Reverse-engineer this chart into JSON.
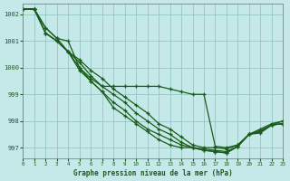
{
  "title": "Graphe pression niveau de la mer (hPa)",
  "background_color": "#c5e8e8",
  "line_color": "#1a5c1a",
  "grid_color": "#8bbfbf",
  "xlim": [
    0,
    23
  ],
  "ylim": [
    996.6,
    1002.4
  ],
  "yticks": [
    997,
    998,
    999,
    1000,
    1001,
    1002
  ],
  "xticks": [
    0,
    1,
    2,
    3,
    4,
    5,
    6,
    7,
    8,
    9,
    10,
    11,
    12,
    13,
    14,
    15,
    16,
    17,
    18,
    19,
    20,
    21,
    22,
    23
  ],
  "series": [
    [
      1002.2,
      1002.2,
      1001.5,
      1001.1,
      1000.6,
      1000.3,
      999.9,
      999.6,
      999.2,
      998.9,
      998.6,
      998.3,
      997.9,
      997.7,
      997.4,
      997.1,
      997.0,
      997.0,
      996.95,
      997.1,
      997.5,
      997.65,
      997.85,
      997.9
    ],
    [
      1002.2,
      1002.2,
      1001.3,
      1001.0,
      1000.6,
      1000.2,
      999.7,
      999.3,
      999.0,
      998.7,
      998.3,
      998.0,
      997.7,
      997.5,
      997.2,
      997.0,
      996.95,
      996.9,
      996.85,
      997.05,
      997.5,
      997.6,
      997.85,
      997.9
    ],
    [
      1002.2,
      1002.2,
      1001.3,
      1001.0,
      1000.6,
      1000.0,
      999.5,
      999.1,
      998.7,
      998.4,
      998.0,
      997.7,
      997.5,
      997.3,
      997.1,
      997.0,
      996.9,
      996.85,
      996.8,
      997.05,
      997.5,
      997.6,
      997.85,
      997.9
    ],
    [
      1002.2,
      1002.2,
      1001.3,
      1001.0,
      1000.6,
      999.9,
      999.5,
      999.1,
      998.5,
      998.2,
      997.9,
      997.6,
      997.3,
      997.1,
      997.0,
      997.0,
      996.9,
      996.85,
      996.8,
      997.05,
      997.5,
      997.55,
      997.85,
      998.0
    ]
  ],
  "series_top": [
    1002.2,
    1002.2,
    1001.5,
    1001.1,
    1001.0,
    1000.0,
    999.6,
    999.3,
    999.3,
    999.3,
    999.3,
    999.3,
    999.3,
    999.2,
    999.1,
    999.0,
    999.0,
    997.05,
    997.0,
    997.1,
    997.5,
    997.7,
    997.9,
    998.0
  ]
}
